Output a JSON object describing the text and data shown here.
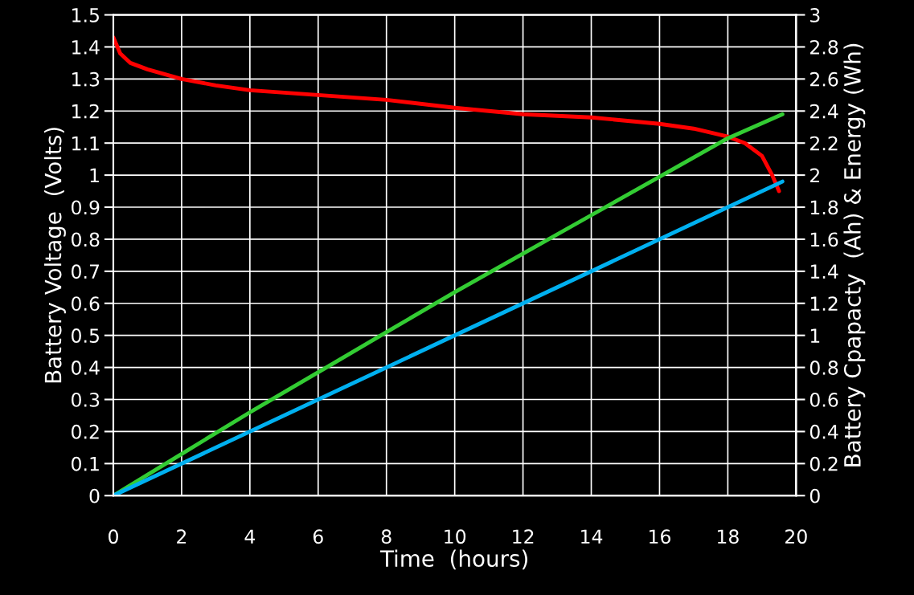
{
  "chart_data": {
    "type": "line",
    "xlabel": "Time  (hours)",
    "ylabel": "Battery Voltage  (Volts)",
    "y2label": "Battery Cpapacty  (Ah) & Energy (Wh)",
    "grid": true,
    "legend": false,
    "xlim": [
      0,
      20
    ],
    "xticks": [
      0,
      2,
      4,
      6,
      8,
      10,
      12,
      14,
      16,
      18,
      20
    ],
    "ylim": [
      0,
      1.5
    ],
    "yticks": [
      0,
      0.1,
      0.2,
      0.3,
      0.4,
      0.5,
      0.6,
      0.7,
      0.8,
      0.9,
      1,
      1.1,
      1.2,
      1.3,
      1.4,
      1.5
    ],
    "y2lim": [
      0,
      3
    ],
    "y2ticks": [
      0,
      0.2,
      0.4,
      0.6,
      0.8,
      1,
      1.2,
      1.4,
      1.6,
      1.8,
      2,
      2.2,
      2.4,
      2.6,
      2.8,
      3
    ],
    "series": [
      {
        "color": "#ff0000",
        "x": [
          0,
          0.2,
          0.5,
          1,
          2,
          3,
          4,
          6,
          8,
          10,
          12,
          14,
          16,
          17,
          18,
          18.5,
          19,
          19.3,
          19.5
        ],
        "values": [
          1.43,
          1.38,
          1.35,
          1.33,
          1.3,
          1.28,
          1.265,
          1.25,
          1.235,
          1.21,
          1.19,
          1.18,
          1.16,
          1.145,
          1.12,
          1.1,
          1.06,
          1.0,
          0.95
        ]
      },
      {
        "color": "#33cc33",
        "axis": "y2",
        "x": [
          0,
          2,
          4,
          6,
          8,
          10,
          12,
          14,
          16,
          18,
          19.6
        ],
        "values": [
          0,
          0.26,
          0.52,
          0.77,
          1.02,
          1.27,
          1.51,
          1.75,
          1.99,
          2.23,
          2.38
        ]
      },
      {
        "color": "#00b0f0",
        "axis": "y2",
        "x": [
          0,
          19.6
        ],
        "values": [
          0,
          1.96
        ]
      }
    ]
  }
}
